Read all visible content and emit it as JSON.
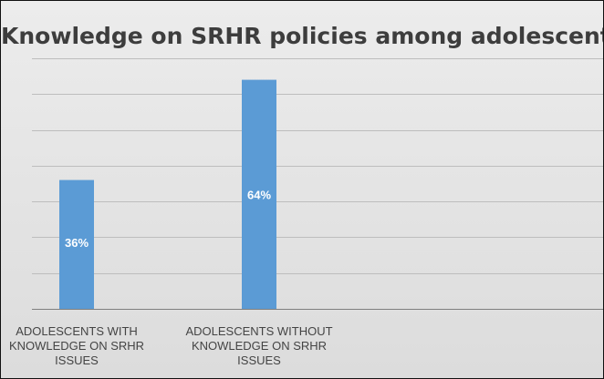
{
  "chart_data": {
    "type": "bar",
    "title": "Knowledge on SRHR policies among adolescents",
    "categories": [
      "ADOLESCENTS WITH KNOWLEDGE ON SRHR ISSUES",
      "ADOLESCENTS WITHOUT KNOWLEDGE ON SRHR ISSUES"
    ],
    "category_lines": [
      [
        "ADOLESCENTS WITH",
        "KNOWLEDGE ON SRHR",
        "ISSUES"
      ],
      [
        "ADOLESCENTS WITHOUT",
        "KNOWLEDGE ON SRHR",
        "ISSUES"
      ]
    ],
    "values": [
      36,
      64
    ],
    "data_labels": [
      "36%",
      "64%"
    ],
    "ylim": [
      0,
      70
    ],
    "grid": true,
    "legend": "none",
    "colors": {
      "bar": "#5b9bd5",
      "grid": "#bdbdbd",
      "axis": "#7f7f7f",
      "label": "#ffffff"
    }
  }
}
